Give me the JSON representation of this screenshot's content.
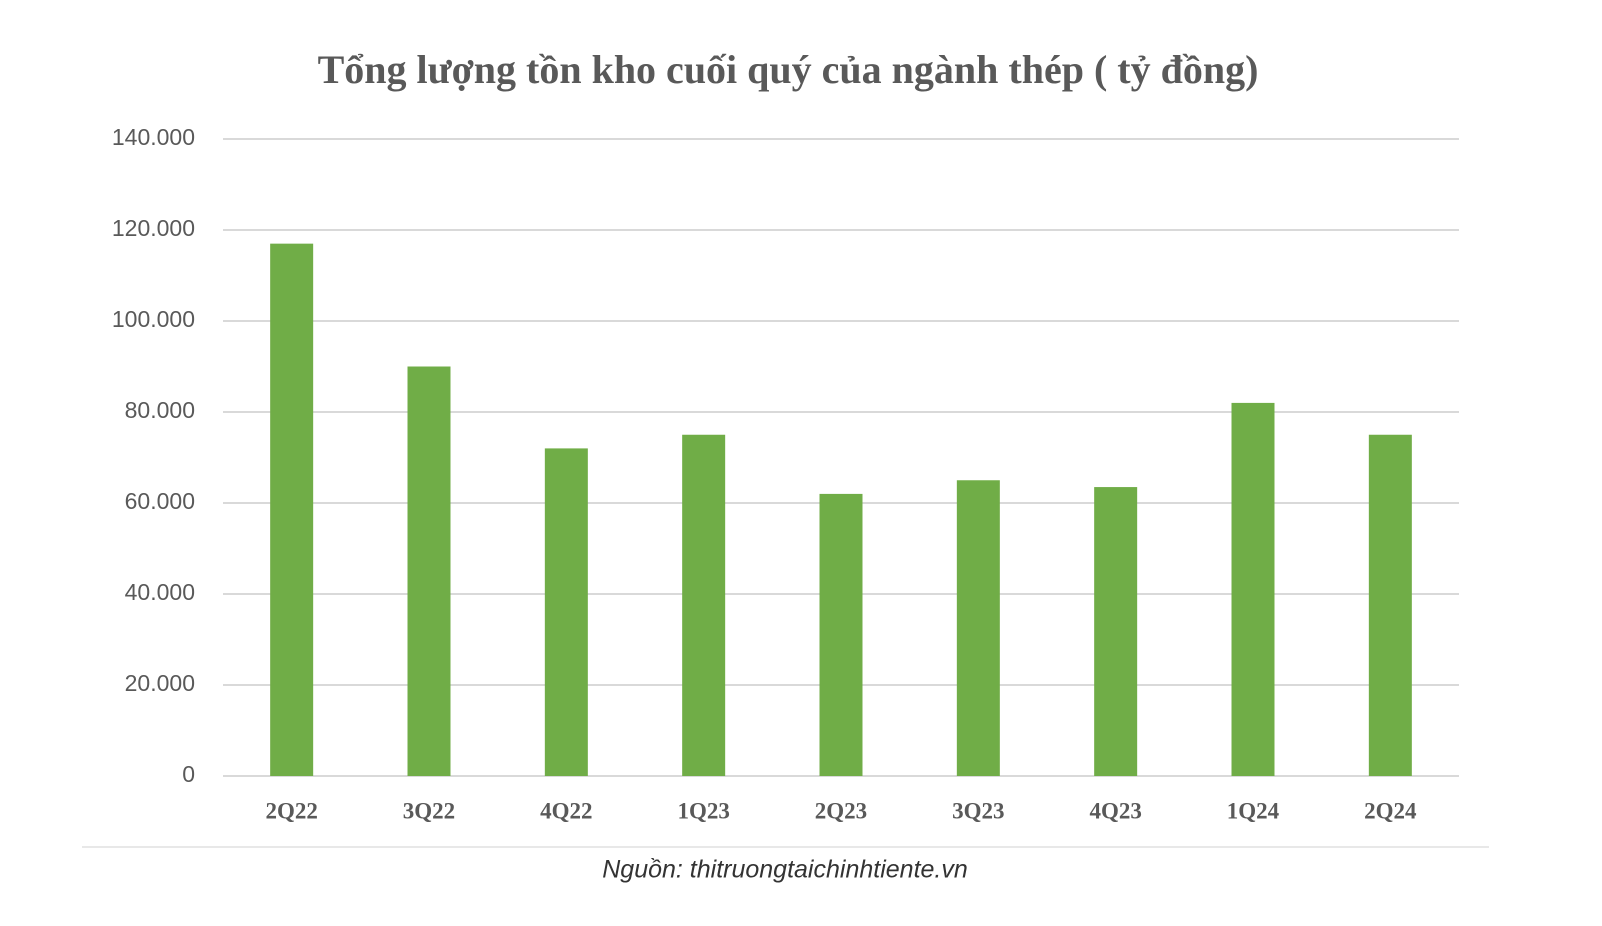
{
  "chart_data": {
    "type": "bar",
    "title": "Tổng lượng tồn kho cuối quý của ngành thép ( tỷ đồng)",
    "categories": [
      "2Q22",
      "3Q22",
      "4Q22",
      "1Q23",
      "2Q23",
      "3Q23",
      "4Q23",
      "1Q24",
      "2Q24"
    ],
    "values": [
      117000,
      90000,
      72000,
      75000,
      62000,
      65000,
      63500,
      82000,
      75000
    ],
    "color": "#70ad47",
    "ylim": [
      0,
      140000
    ],
    "yticks": [
      0,
      {
        "value": 20000,
        "label": "20.000"
      },
      {
        "value": 40000,
        "label": "40.000"
      },
      {
        "value": 60000,
        "label": "60.000"
      },
      {
        "value": 80000,
        "label": "80.000"
      },
      {
        "value": 100000,
        "label": "100.000"
      },
      {
        "value": 120000,
        "label": "120.000"
      },
      {
        "value": 140000,
        "label": "140.000"
      }
    ],
    "grid": true,
    "source": "Nguồn: thitruongtaichinhtiente.vn"
  }
}
